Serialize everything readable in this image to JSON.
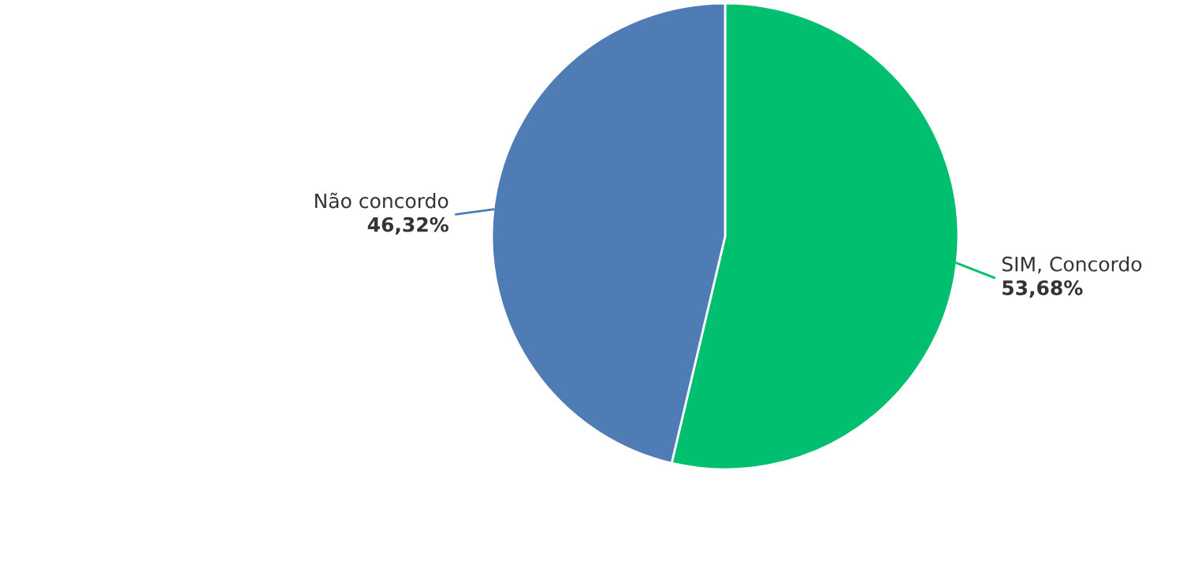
{
  "chart_data": {
    "type": "pie",
    "categories": [
      "SIM, Concordo",
      "Não concordo"
    ],
    "values": [
      53.68,
      46.32
    ],
    "colors": [
      "#00bf6f",
      "#507cb6"
    ],
    "value_labels": [
      "53,68%",
      "46,32%"
    ]
  }
}
